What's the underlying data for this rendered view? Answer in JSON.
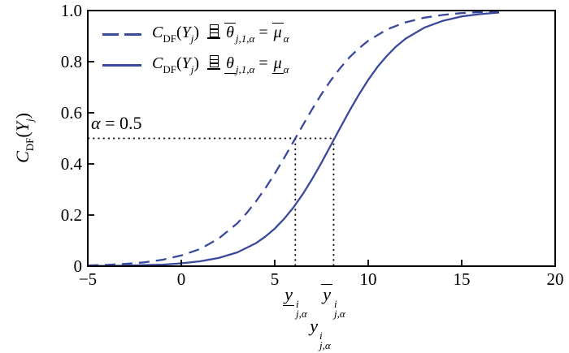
{
  "colors": {
    "curve": "#39499b",
    "frame": "#000000",
    "dotted": "#111111"
  },
  "chart_data": {
    "type": "line",
    "title": "",
    "xlabel": "y^i_{j,α}",
    "ylabel": "C_DF(Y_j)",
    "xlim": [
      -5,
      20
    ],
    "ylim": [
      0,
      1
    ],
    "grid": false,
    "legend_position": "upper-left",
    "xticks": {
      "values": [
        -5,
        0,
        5,
        10,
        15,
        20
      ],
      "labels": [
        "−5",
        "0",
        "5",
        "10",
        "15",
        "20"
      ]
    },
    "yticks": {
      "values": [
        0,
        0.2,
        0.4,
        0.6,
        0.8,
        1.0
      ],
      "labels": [
        "0",
        "0.2",
        "0.4",
        "0.6",
        "0.8",
        "1.0"
      ]
    },
    "series": [
      {
        "name": "C_DF(Y_j) 且 θ̅_{j,1,α} = μ̅_α",
        "style": "dashed",
        "median": 6.1,
        "points": [
          [
            -5,
            0.003
          ],
          [
            -4,
            0.005
          ],
          [
            -3,
            0.009
          ],
          [
            -2,
            0.015
          ],
          [
            -1,
            0.025
          ],
          [
            0,
            0.042
          ],
          [
            1,
            0.067
          ],
          [
            2,
            0.108
          ],
          [
            3,
            0.168
          ],
          [
            3.5,
            0.208
          ],
          [
            4,
            0.254
          ],
          [
            4.5,
            0.305
          ],
          [
            5,
            0.362
          ],
          [
            5.5,
            0.423
          ],
          [
            6,
            0.487
          ],
          [
            6.5,
            0.551
          ],
          [
            7,
            0.614
          ],
          [
            7.5,
            0.673
          ],
          [
            8,
            0.727
          ],
          [
            8.5,
            0.775
          ],
          [
            9,
            0.817
          ],
          [
            9.5,
            0.852
          ],
          [
            10,
            0.882
          ],
          [
            11,
            0.926
          ],
          [
            12,
            0.954
          ],
          [
            13,
            0.972
          ],
          [
            14,
            0.983
          ],
          [
            15,
            0.99
          ],
          [
            16,
            0.994
          ],
          [
            17,
            0.996
          ]
        ]
      },
      {
        "name": "C_DF(Y_j) 且 θ̲_{j,1,α} = μ̲_α",
        "style": "solid",
        "median": 8.15,
        "points": [
          [
            -5,
            0.001
          ],
          [
            -4,
            0.001
          ],
          [
            -3,
            0.002
          ],
          [
            -2,
            0.004
          ],
          [
            -1,
            0.006
          ],
          [
            0,
            0.011
          ],
          [
            1,
            0.019
          ],
          [
            2,
            0.032
          ],
          [
            3,
            0.054
          ],
          [
            4,
            0.09
          ],
          [
            4.5,
            0.116
          ],
          [
            5,
            0.147
          ],
          [
            5.5,
            0.185
          ],
          [
            6,
            0.23
          ],
          [
            6.5,
            0.282
          ],
          [
            7,
            0.341
          ],
          [
            7.5,
            0.405
          ],
          [
            8,
            0.473
          ],
          [
            8.5,
            0.541
          ],
          [
            9,
            0.608
          ],
          [
            9.5,
            0.671
          ],
          [
            10,
            0.729
          ],
          [
            10.5,
            0.78
          ],
          [
            11,
            0.823
          ],
          [
            11.5,
            0.86
          ],
          [
            12,
            0.89
          ],
          [
            13,
            0.933
          ],
          [
            14,
            0.96
          ],
          [
            15,
            0.977
          ],
          [
            16,
            0.986
          ],
          [
            17,
            0.992
          ]
        ]
      }
    ],
    "annotations": {
      "alpha_level": 0.5,
      "alpha_text": "α = 0.5",
      "crossings": [
        6.1,
        8.15
      ],
      "crossing_labels": [
        "y̲^i_{j,α}",
        "y̅^i_{j,α}"
      ]
    }
  },
  "legend": {
    "rows": [
      {
        "parts": [
          [
            "C",
            "i"
          ],
          [
            "DF",
            "sub"
          ],
          [
            "(",
            "n"
          ],
          [
            "Y",
            "i"
          ],
          [
            "j",
            "subi"
          ],
          [
            ") ",
            "n"
          ],
          [
            "且",
            "qie"
          ],
          [
            "θ",
            "ovi"
          ],
          [
            "j,1,α",
            "subi"
          ],
          [
            " = ",
            "n"
          ],
          [
            "μ",
            "ovi"
          ],
          [
            "α",
            "subi"
          ]
        ]
      },
      {
        "parts": [
          [
            "C",
            "i"
          ],
          [
            "DF",
            "sub"
          ],
          [
            "(",
            "n"
          ],
          [
            "Y",
            "i"
          ],
          [
            "j",
            "subi"
          ],
          [
            ") ",
            "n"
          ],
          [
            "且",
            "qie"
          ],
          [
            "θ",
            "uni"
          ],
          [
            "j,1,α",
            "subi"
          ],
          [
            " = ",
            "n"
          ],
          [
            "μ",
            "uni"
          ],
          [
            "α",
            "subi"
          ]
        ]
      }
    ]
  },
  "labels": {
    "alpha_note": {
      "parts": [
        [
          "α",
          "i"
        ],
        [
          " = 0.5",
          "n"
        ]
      ]
    },
    "y_axis": {
      "parts": [
        [
          "C",
          "i"
        ],
        [
          "DF",
          "sub"
        ],
        [
          "(",
          "n"
        ],
        [
          "Y",
          "i"
        ],
        [
          "j",
          "subi"
        ],
        [
          ")",
          "n"
        ]
      ]
    },
    "x_under_lower": {
      "parts": [
        [
          "y",
          "uni"
        ],
        [
          "i|j,α",
          "ss"
        ]
      ]
    },
    "x_under_upper": {
      "parts": [
        [
          "y",
          "ovi"
        ],
        [
          "i|j,α",
          "ss"
        ]
      ]
    },
    "x_axis": {
      "parts": [
        [
          "y",
          "i"
        ],
        [
          "i|j,α",
          "ss"
        ]
      ]
    }
  }
}
